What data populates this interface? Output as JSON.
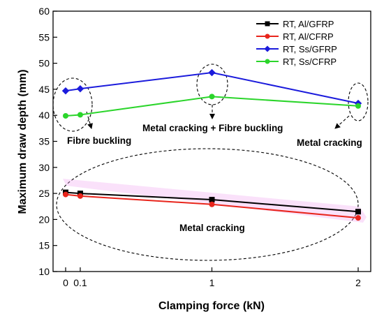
{
  "chart_data": {
    "type": "line",
    "xlabel": "Clamping force (kN)",
    "ylabel": "Maximum draw depth (mm)",
    "ylim": [
      10,
      60
    ],
    "y_ticks": [
      10,
      15,
      20,
      25,
      30,
      35,
      40,
      45,
      50,
      55,
      60
    ],
    "x_ticks": [
      {
        "value": 0,
        "label": "0"
      },
      {
        "value": 0.1,
        "label": "0.1"
      },
      {
        "value": 1,
        "label": "1"
      },
      {
        "value": 2,
        "label": "2"
      }
    ],
    "x": [
      0,
      0.1,
      1,
      2
    ],
    "series": [
      {
        "name": "RT, Al/GFRP",
        "color": "#000000",
        "marker": "square",
        "values": [
          25.2,
          25.0,
          23.8,
          21.5
        ]
      },
      {
        "name": "RT, Al/CFRP",
        "color": "#e8251c",
        "marker": "circle",
        "values": [
          24.8,
          24.5,
          22.9,
          20.3
        ]
      },
      {
        "name": "RT, Ss/GFRP",
        "color": "#1b1bdc",
        "marker": "diamond",
        "values": [
          44.7,
          45.1,
          48.2,
          42.3
        ]
      },
      {
        "name": "RT, Ss/CFRP",
        "color": "#2bd52b",
        "marker": "circle",
        "values": [
          39.9,
          40.1,
          43.6,
          41.8
        ]
      }
    ],
    "legend_position": "top-right",
    "grid": false,
    "annotations": [
      {
        "text": "Fibre buckling"
      },
      {
        "text": "Metal cracking + Fibre buckling"
      },
      {
        "text": "Metal cracking"
      },
      {
        "text": "Metal cracking"
      }
    ]
  }
}
